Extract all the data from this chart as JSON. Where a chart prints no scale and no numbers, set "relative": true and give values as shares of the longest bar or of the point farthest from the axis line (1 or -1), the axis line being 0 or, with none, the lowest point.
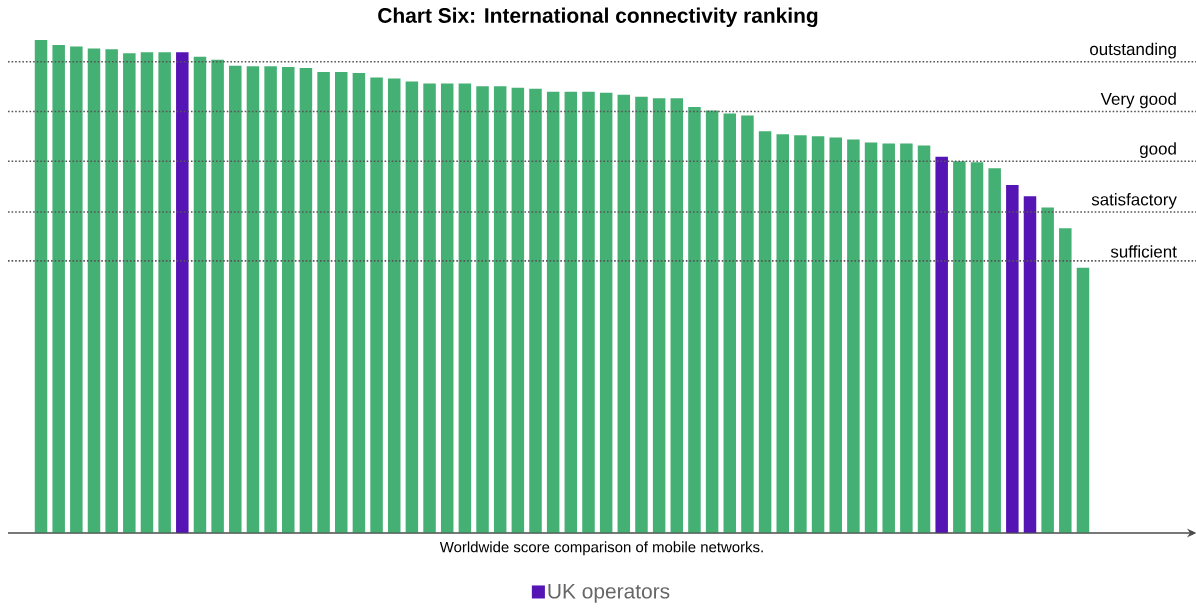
{
  "chart_data": {
    "type": "bar",
    "relative": true,
    "title": "Chart Six: International connectivity ranking",
    "xlabel": "Worldwide score comparison of mobile networks.",
    "legend_title": "UK operators",
    "categories": [
      null,
      null,
      null,
      null,
      null,
      null,
      null,
      null,
      null,
      null,
      null,
      null,
      null,
      null,
      null,
      null,
      null,
      null,
      null,
      null,
      null,
      null,
      null,
      null,
      null,
      null,
      null,
      null,
      null,
      null,
      null,
      null,
      null,
      null,
      null,
      null,
      null,
      null,
      null,
      null,
      null,
      null,
      null,
      null,
      null,
      null,
      null,
      null,
      null,
      null,
      null,
      null,
      null,
      null,
      null,
      null,
      null,
      null,
      null,
      null
    ],
    "values": [
      1.0,
      0.99,
      0.987,
      0.983,
      0.981,
      0.973,
      0.975,
      0.975,
      0.975,
      0.966,
      0.96,
      0.948,
      0.947,
      0.947,
      0.945,
      0.943,
      0.935,
      0.935,
      0.933,
      0.924,
      0.922,
      0.916,
      0.912,
      0.912,
      0.912,
      0.906,
      0.906,
      0.903,
      0.901,
      0.895,
      0.895,
      0.895,
      0.893,
      0.889,
      0.885,
      0.882,
      0.882,
      0.864,
      0.857,
      0.851,
      0.847,
      0.815,
      0.809,
      0.807,
      0.805,
      0.802,
      0.798,
      0.792,
      0.79,
      0.79,
      0.786,
      0.763,
      0.754,
      0.752,
      0.74,
      0.706,
      0.683,
      0.66,
      0.618,
      0.538
    ],
    "colors": [
      "#44b073",
      "#44b073",
      "#44b073",
      "#44b073",
      "#44b073",
      "#44b073",
      "#44b073",
      "#44b073",
      "#5514b4",
      "#44b073",
      "#44b073",
      "#44b073",
      "#44b073",
      "#44b073",
      "#44b073",
      "#44b073",
      "#44b073",
      "#44b073",
      "#44b073",
      "#44b073",
      "#44b073",
      "#44b073",
      "#44b073",
      "#44b073",
      "#44b073",
      "#44b073",
      "#44b073",
      "#44b073",
      "#44b073",
      "#44b073",
      "#44b073",
      "#44b073",
      "#44b073",
      "#44b073",
      "#44b073",
      "#44b073",
      "#44b073",
      "#44b073",
      "#44b073",
      "#44b073",
      "#44b073",
      "#44b073",
      "#44b073",
      "#44b073",
      "#44b073",
      "#44b073",
      "#44b073",
      "#44b073",
      "#44b073",
      "#44b073",
      "#44b073",
      "#5514b4",
      "#44b073",
      "#44b073",
      "#44b073",
      "#5514b4",
      "#5514b4",
      "#44b073",
      "#44b073",
      "#44b073"
    ],
    "ref_lines": [
      {
        "axis": "y",
        "value": 0.956,
        "label": "outstanding",
        "color": "#555555",
        "line_style": "dotted"
      },
      {
        "axis": "y",
        "value": 0.855,
        "label": "Very good",
        "color": "#555555",
        "line_style": "dotted"
      },
      {
        "axis": "y",
        "value": 0.754,
        "label": "good",
        "color": "#555555",
        "line_style": "dotted"
      },
      {
        "axis": "y",
        "value": 0.651,
        "label": "satisfactory",
        "color": "#555555",
        "line_style": "dotted"
      },
      {
        "axis": "y",
        "value": 0.552,
        "label": "sufficient",
        "color": "#555555",
        "line_style": "dotted"
      }
    ]
  }
}
